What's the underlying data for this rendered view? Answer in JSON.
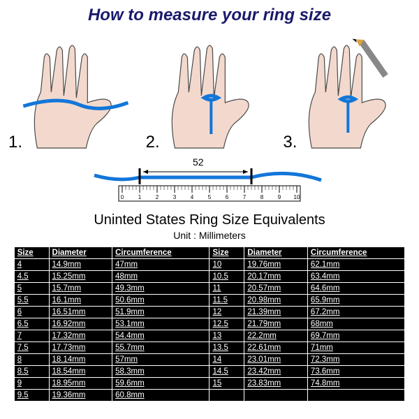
{
  "title": "How to measure your ring size",
  "steps": {
    "s1": "1.",
    "s2": "2.",
    "s3": "3."
  },
  "ruler": {
    "measurement": "52",
    "ticks": [
      "0",
      "1",
      "2",
      "3",
      "4",
      "5",
      "6",
      "7",
      "8",
      "9",
      "10"
    ]
  },
  "table": {
    "title": "Uninted States Ring Size Equivalents",
    "unit_label": "Unit : Millimeters",
    "columns": [
      "Size",
      "Diameter",
      "Circumference",
      "Size",
      "Diameter",
      "Circumference"
    ],
    "rows": [
      [
        "4",
        "14.9mm",
        "47mm",
        "10",
        "19.76mm",
        "62.1mm"
      ],
      [
        "4.5",
        "15.25mm",
        "48mm",
        "10.5",
        "20.17mm",
        "63.4mm"
      ],
      [
        "5",
        "15.7mm",
        "49.3mm",
        "11",
        "20.57mm",
        "64.6mm"
      ],
      [
        "5.5",
        "16.1mm",
        "50.6mm",
        "11.5",
        "20.98mm",
        "65.9mm"
      ],
      [
        "6",
        "16.51mm",
        "51.9mm",
        "12",
        "21.39mm",
        "67.2mm"
      ],
      [
        "6.5",
        "16.92mm",
        "53.1mm",
        "12.5",
        "21.79mm",
        "68mm"
      ],
      [
        "7",
        "17.32mm",
        "54.4mm",
        "13",
        "22.2mm",
        "69.7mm"
      ],
      [
        "7.5",
        "17.73mm",
        "55.7mm",
        "13.5",
        "22.61mm",
        "71mm"
      ],
      [
        "8",
        "18.14mm",
        "57mm",
        "14",
        "23.01mm",
        "72.3mm"
      ],
      [
        "8.5",
        "18.54mm",
        "58.3mm",
        "14.5",
        "23.42mm",
        "73.6mm"
      ],
      [
        "9",
        "18.95mm",
        "59.6mm",
        "15",
        "23.83mm",
        "74.8mm"
      ],
      [
        "9.5",
        "19.36mm",
        "60.8mm",
        "",
        "",
        ""
      ]
    ]
  },
  "colors": {
    "string": "#1276d9",
    "hand_fill": "#f3d9cd",
    "hand_stroke": "#4a4a4a",
    "table_bg": "#000000",
    "table_fg": "#ffffff",
    "title_color": "#1a1a6b",
    "pencil_body": "#888888",
    "pencil_tip": "#d9a441"
  }
}
